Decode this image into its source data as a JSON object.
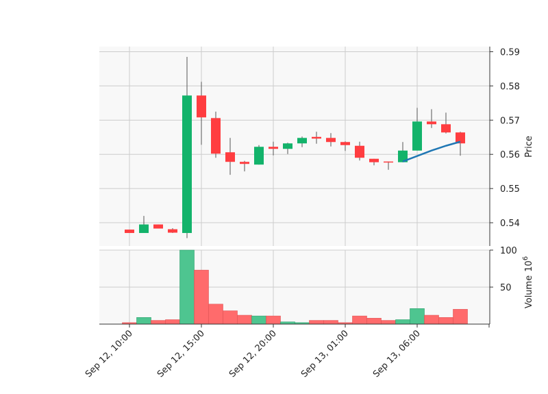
{
  "chart_data": {
    "type": "candlestick",
    "x_ticks": [
      "Sep 12, 10:00",
      "Sep 12, 15:00",
      "Sep 12, 20:00",
      "Sep 13, 01:00",
      "Sep 13, 06:00"
    ],
    "price": {
      "label": "Price",
      "ylim": [
        0.5332,
        0.5915
      ],
      "ticks": [
        "0.54",
        "0.55",
        "0.56",
        "0.57",
        "0.58",
        "0.59"
      ]
    },
    "volume": {
      "label": "Volume",
      "unit": "10",
      "unit_exp": "6",
      "ylim": [
        0,
        100
      ],
      "ticks": [
        "50",
        "100"
      ]
    },
    "candles": [
      {
        "open": 0.538,
        "high": 0.538,
        "low": 0.537,
        "close": 0.537,
        "volume": 2
      },
      {
        "open": 0.537,
        "high": 0.542,
        "low": 0.537,
        "close": 0.5395,
        "volume": 9
      },
      {
        "open": 0.5395,
        "high": 0.5395,
        "low": 0.5383,
        "close": 0.5383,
        "volume": 5
      },
      {
        "open": 0.5381,
        "high": 0.5384,
        "low": 0.537,
        "close": 0.5371,
        "volume": 6
      },
      {
        "open": 0.537,
        "high": 0.5885,
        "low": 0.5355,
        "close": 0.5772,
        "volume": 100
      },
      {
        "open": 0.5772,
        "high": 0.5812,
        "low": 0.5628,
        "close": 0.5708,
        "volume": 73
      },
      {
        "open": 0.5706,
        "high": 0.5725,
        "low": 0.559,
        "close": 0.5602,
        "volume": 27
      },
      {
        "open": 0.5606,
        "high": 0.5648,
        "low": 0.554,
        "close": 0.5578,
        "volume": 18
      },
      {
        "open": 0.5578,
        "high": 0.5581,
        "low": 0.555,
        "close": 0.5572,
        "volume": 12
      },
      {
        "open": 0.557,
        "high": 0.5627,
        "low": 0.557,
        "close": 0.5622,
        "volume": 11
      },
      {
        "open": 0.5622,
        "high": 0.5637,
        "low": 0.5597,
        "close": 0.5616,
        "volume": 11
      },
      {
        "open": 0.5616,
        "high": 0.5634,
        "low": 0.5601,
        "close": 0.5632,
        "volume": 3
      },
      {
        "open": 0.5632,
        "high": 0.5652,
        "low": 0.5621,
        "close": 0.5648,
        "volume": 2
      },
      {
        "open": 0.5651,
        "high": 0.5666,
        "low": 0.5631,
        "close": 0.5646,
        "volume": 5
      },
      {
        "open": 0.5648,
        "high": 0.5662,
        "low": 0.5623,
        "close": 0.5636,
        "volume": 5
      },
      {
        "open": 0.5636,
        "high": 0.5638,
        "low": 0.561,
        "close": 0.5627,
        "volume": 2
      },
      {
        "open": 0.5625,
        "high": 0.5637,
        "low": 0.5582,
        "close": 0.559,
        "volume": 11
      },
      {
        "open": 0.5587,
        "high": 0.5587,
        "low": 0.5568,
        "close": 0.5577,
        "volume": 8
      },
      {
        "open": 0.5579,
        "high": 0.5579,
        "low": 0.5555,
        "close": 0.5577,
        "volume": 5
      },
      {
        "open": 0.5577,
        "high": 0.5636,
        "low": 0.5577,
        "close": 0.5611,
        "volume": 6
      },
      {
        "open": 0.5611,
        "high": 0.5736,
        "low": 0.5611,
        "close": 0.5696,
        "volume": 21
      },
      {
        "open": 0.5696,
        "high": 0.5732,
        "low": 0.5677,
        "close": 0.5688,
        "volume": 12
      },
      {
        "open": 0.5688,
        "high": 0.5722,
        "low": 0.5661,
        "close": 0.5664,
        "volume": 9
      },
      {
        "open": 0.5664,
        "high": 0.5666,
        "low": 0.5596,
        "close": 0.5632,
        "volume": 20
      }
    ],
    "overlay_line": {
      "from_index": 19,
      "to_index": 23,
      "values": [
        0.5579,
        0.5595,
        0.5611,
        0.5625,
        0.5637
      ]
    },
    "colors": {
      "up": "#13b36b",
      "down": "#ff3d40",
      "up_volume": "#4ec590",
      "down_volume": "#ff6b6c",
      "wick": "#555555",
      "overlay_line": "#1f77b4",
      "plot_background": "#f8f8f8",
      "grid": "#cccccc"
    },
    "grid": true
  }
}
